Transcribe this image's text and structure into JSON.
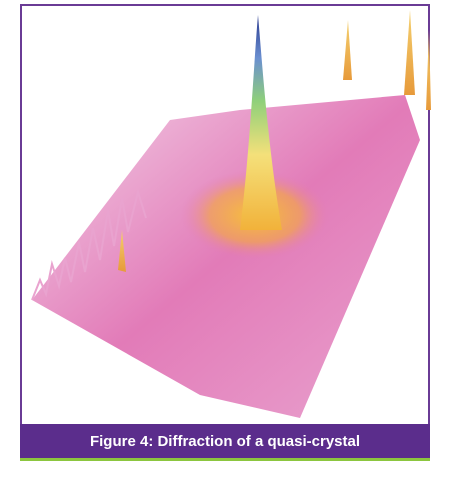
{
  "figure": {
    "caption": "Figure 4: Diffraction of a quasi-crystal"
  }
}
